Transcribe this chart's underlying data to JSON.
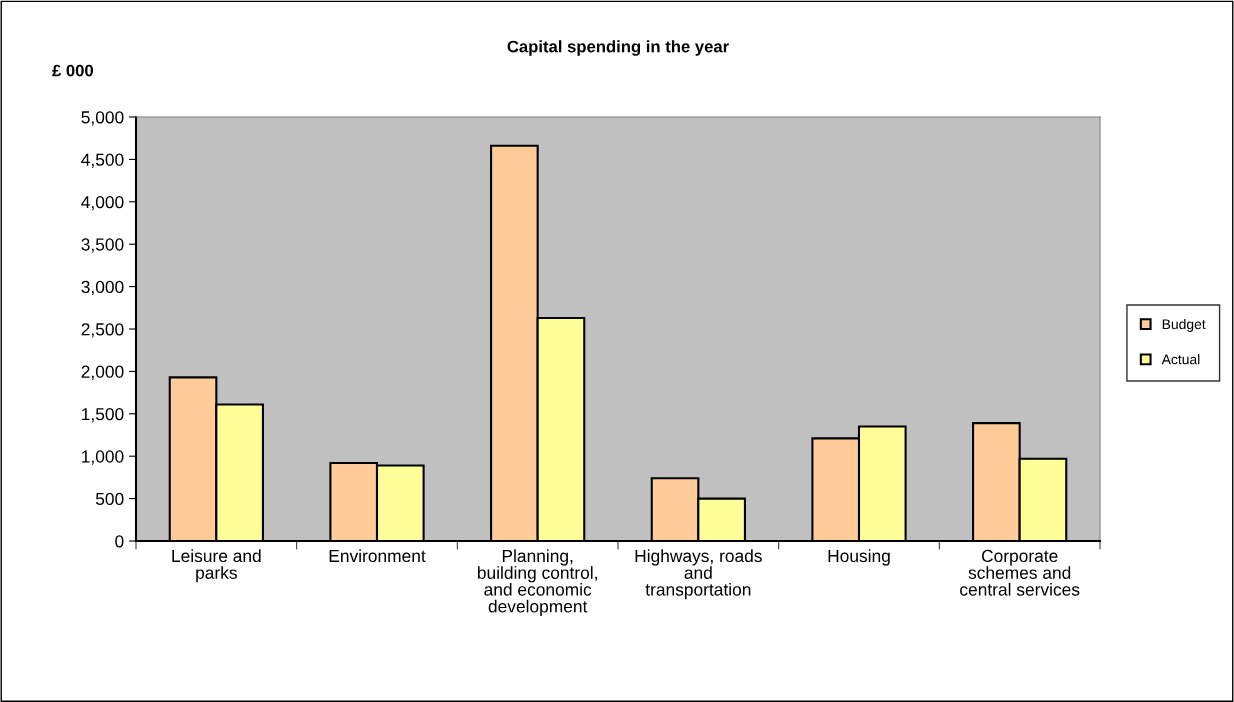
{
  "chart_data": {
    "type": "bar",
    "title": "Capital spending in the year",
    "ylabel": "£ 000",
    "categories": [
      "Leisure and\nparks",
      "Environment",
      "Planning,\nbuilding control,\nand economic\ndevelopment",
      "Highways, roads\nand\ntransportation",
      "Housing",
      "Corporate\nschemes and\ncentral services"
    ],
    "series": [
      {
        "name": "Budget",
        "color": "#ffcc99",
        "values": [
          1930,
          920,
          4660,
          740,
          1210,
          1390
        ]
      },
      {
        "name": "Actual",
        "color": "#ffff99",
        "values": [
          1610,
          890,
          2630,
          500,
          1350,
          970
        ]
      }
    ],
    "ylim": [
      0,
      5000
    ],
    "yticks": [
      {
        "value": 0,
        "label": "0"
      },
      {
        "value": 500,
        "label": "500"
      },
      {
        "value": 1000,
        "label": "1,000"
      },
      {
        "value": 1500,
        "label": "1,500"
      },
      {
        "value": 2000,
        "label": "2,000"
      },
      {
        "value": 2500,
        "label": "2,500"
      },
      {
        "value": 3000,
        "label": "3,000"
      },
      {
        "value": 3500,
        "label": "3,500"
      },
      {
        "value": 4000,
        "label": "4,000"
      },
      {
        "value": 4500,
        "label": "4,500"
      },
      {
        "value": 5000,
        "label": "5,000"
      }
    ],
    "legend": "right",
    "grid": false
  }
}
